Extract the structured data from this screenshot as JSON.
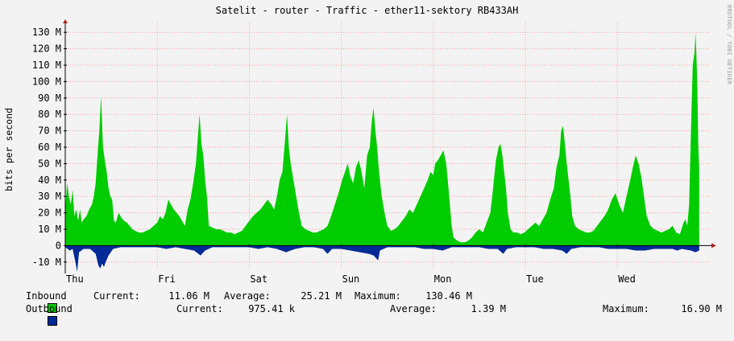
{
  "title": "Satelit - router - Traffic - ether11-sektory RB433AH",
  "side_text": "RRDTOOL / TOBI OETIKER",
  "chart_data": {
    "type": "area",
    "ylabel": "bits per second",
    "ylim": [
      -15,
      135
    ],
    "y_ticks": [
      "130 M",
      "120 M",
      "110 M",
      "100 M",
      "90 M",
      "80 M",
      "70 M",
      "60 M",
      "50 M",
      "40 M",
      "30 M",
      "20 M",
      "10 M",
      "0",
      "-10 M"
    ],
    "y_tick_values": [
      130,
      120,
      110,
      100,
      90,
      80,
      70,
      60,
      50,
      40,
      30,
      20,
      10,
      0,
      -10
    ],
    "x_ticks": [
      "Thu",
      "Fri",
      "Sat",
      "Sun",
      "Mon",
      "Tue",
      "Wed"
    ],
    "x_tick_days": [
      0,
      1,
      2,
      3,
      4,
      5,
      6
    ],
    "x_range_days": [
      0,
      7.0
    ],
    "colors": {
      "inbound": "#00cc00",
      "outbound": "#002a97",
      "grid": "#ff9999",
      "axis": "#000000"
    },
    "series": [
      {
        "name": "Inbound",
        "unit": "M bits/s",
        "points": [
          [
            0.0,
            22
          ],
          [
            0.02,
            38
          ],
          [
            0.04,
            30
          ],
          [
            0.06,
            25
          ],
          [
            0.08,
            34
          ],
          [
            0.1,
            18
          ],
          [
            0.12,
            22
          ],
          [
            0.14,
            15
          ],
          [
            0.16,
            22
          ],
          [
            0.18,
            14
          ],
          [
            0.2,
            16
          ],
          [
            0.23,
            18
          ],
          [
            0.26,
            22
          ],
          [
            0.29,
            25
          ],
          [
            0.31,
            30
          ],
          [
            0.33,
            38
          ],
          [
            0.35,
            55
          ],
          [
            0.37,
            70
          ],
          [
            0.39,
            91
          ],
          [
            0.41,
            60
          ],
          [
            0.43,
            52
          ],
          [
            0.45,
            45
          ],
          [
            0.47,
            35
          ],
          [
            0.49,
            30
          ],
          [
            0.51,
            28
          ],
          [
            0.53,
            15
          ],
          [
            0.55,
            14
          ],
          [
            0.58,
            20
          ],
          [
            0.61,
            17
          ],
          [
            0.64,
            15
          ],
          [
            0.67,
            14
          ],
          [
            0.7,
            12
          ],
          [
            0.73,
            10
          ],
          [
            0.76,
            9
          ],
          [
            0.8,
            8
          ],
          [
            0.84,
            8
          ],
          [
            0.88,
            9
          ],
          [
            0.92,
            10
          ],
          [
            0.96,
            12
          ],
          [
            1.0,
            14
          ],
          [
            1.03,
            18
          ],
          [
            1.06,
            16
          ],
          [
            1.09,
            20
          ],
          [
            1.12,
            28
          ],
          [
            1.15,
            25
          ],
          [
            1.18,
            22
          ],
          [
            1.21,
            20
          ],
          [
            1.24,
            18
          ],
          [
            1.27,
            15
          ],
          [
            1.3,
            12
          ],
          [
            1.33,
            22
          ],
          [
            1.36,
            28
          ],
          [
            1.39,
            38
          ],
          [
            1.42,
            50
          ],
          [
            1.44,
            65
          ],
          [
            1.46,
            80
          ],
          [
            1.48,
            62
          ],
          [
            1.5,
            55
          ],
          [
            1.52,
            40
          ],
          [
            1.54,
            30
          ],
          [
            1.56,
            12
          ],
          [
            1.6,
            11
          ],
          [
            1.64,
            10
          ],
          [
            1.68,
            10
          ],
          [
            1.72,
            9
          ],
          [
            1.76,
            8
          ],
          [
            1.8,
            8
          ],
          [
            1.84,
            7
          ],
          [
            1.88,
            8
          ],
          [
            1.92,
            9
          ],
          [
            1.96,
            12
          ],
          [
            2.0,
            15
          ],
          [
            2.04,
            18
          ],
          [
            2.08,
            20
          ],
          [
            2.12,
            22
          ],
          [
            2.16,
            25
          ],
          [
            2.2,
            28
          ],
          [
            2.24,
            25
          ],
          [
            2.27,
            22
          ],
          [
            2.3,
            30
          ],
          [
            2.33,
            40
          ],
          [
            2.36,
            45
          ],
          [
            2.39,
            65
          ],
          [
            2.41,
            80
          ],
          [
            2.43,
            60
          ],
          [
            2.45,
            50
          ],
          [
            2.48,
            40
          ],
          [
            2.51,
            30
          ],
          [
            2.54,
            20
          ],
          [
            2.57,
            12
          ],
          [
            2.61,
            10
          ],
          [
            2.65,
            9
          ],
          [
            2.69,
            8
          ],
          [
            2.73,
            8
          ],
          [
            2.77,
            9
          ],
          [
            2.81,
            10
          ],
          [
            2.85,
            12
          ],
          [
            2.89,
            18
          ],
          [
            2.93,
            25
          ],
          [
            2.97,
            32
          ],
          [
            3.01,
            40
          ],
          [
            3.04,
            45
          ],
          [
            3.07,
            50
          ],
          [
            3.1,
            42
          ],
          [
            3.13,
            38
          ],
          [
            3.16,
            48
          ],
          [
            3.19,
            52
          ],
          [
            3.22,
            45
          ],
          [
            3.25,
            35
          ],
          [
            3.28,
            55
          ],
          [
            3.31,
            60
          ],
          [
            3.33,
            75
          ],
          [
            3.35,
            84
          ],
          [
            3.37,
            70
          ],
          [
            3.39,
            60
          ],
          [
            3.41,
            45
          ],
          [
            3.44,
            30
          ],
          [
            3.47,
            20
          ],
          [
            3.5,
            12
          ],
          [
            3.54,
            9
          ],
          [
            3.58,
            10
          ],
          [
            3.62,
            12
          ],
          [
            3.66,
            15
          ],
          [
            3.7,
            18
          ],
          [
            3.74,
            22
          ],
          [
            3.78,
            20
          ],
          [
            3.82,
            25
          ],
          [
            3.86,
            30
          ],
          [
            3.9,
            35
          ],
          [
            3.94,
            40
          ],
          [
            3.97,
            45
          ],
          [
            4.0,
            43
          ],
          [
            4.02,
            50
          ],
          [
            4.05,
            52
          ],
          [
            4.08,
            55
          ],
          [
            4.11,
            58
          ],
          [
            4.14,
            50
          ],
          [
            4.16,
            38
          ],
          [
            4.18,
            25
          ],
          [
            4.2,
            12
          ],
          [
            4.22,
            5
          ],
          [
            4.26,
            3
          ],
          [
            4.3,
            2
          ],
          [
            4.34,
            2
          ],
          [
            4.38,
            3
          ],
          [
            4.42,
            5
          ],
          [
            4.46,
            8
          ],
          [
            4.5,
            10
          ],
          [
            4.54,
            8
          ],
          [
            4.58,
            14
          ],
          [
            4.62,
            20
          ],
          [
            4.65,
            35
          ],
          [
            4.68,
            52
          ],
          [
            4.71,
            60
          ],
          [
            4.73,
            62
          ],
          [
            4.75,
            55
          ],
          [
            4.77,
            45
          ],
          [
            4.79,
            35
          ],
          [
            4.81,
            20
          ],
          [
            4.84,
            10
          ],
          [
            4.87,
            8
          ],
          [
            4.91,
            8
          ],
          [
            4.95,
            7
          ],
          [
            4.99,
            8
          ],
          [
            5.03,
            10
          ],
          [
            5.07,
            12
          ],
          [
            5.11,
            14
          ],
          [
            5.15,
            12
          ],
          [
            5.19,
            16
          ],
          [
            5.23,
            20
          ],
          [
            5.27,
            28
          ],
          [
            5.31,
            35
          ],
          [
            5.34,
            48
          ],
          [
            5.37,
            55
          ],
          [
            5.39,
            70
          ],
          [
            5.41,
            73
          ],
          [
            5.43,
            62
          ],
          [
            5.45,
            50
          ],
          [
            5.47,
            40
          ],
          [
            5.49,
            30
          ],
          [
            5.51,
            18
          ],
          [
            5.54,
            12
          ],
          [
            5.58,
            10
          ],
          [
            5.62,
            9
          ],
          [
            5.66,
            8
          ],
          [
            5.7,
            8
          ],
          [
            5.74,
            9
          ],
          [
            5.78,
            12
          ],
          [
            5.82,
            15
          ],
          [
            5.86,
            18
          ],
          [
            5.9,
            22
          ],
          [
            5.94,
            28
          ],
          [
            5.98,
            32
          ],
          [
            6.02,
            25
          ],
          [
            6.06,
            20
          ],
          [
            6.1,
            30
          ],
          [
            6.14,
            40
          ],
          [
            6.17,
            48
          ],
          [
            6.2,
            55
          ],
          [
            6.23,
            50
          ],
          [
            6.26,
            42
          ],
          [
            6.29,
            30
          ],
          [
            6.32,
            18
          ],
          [
            6.36,
            12
          ],
          [
            6.4,
            10
          ],
          [
            6.44,
            9
          ],
          [
            6.48,
            8
          ],
          [
            6.52,
            9
          ],
          [
            6.56,
            10
          ],
          [
            6.6,
            12
          ],
          [
            6.64,
            8
          ],
          [
            6.68,
            7
          ],
          [
            6.72,
            14
          ],
          [
            6.74,
            16
          ],
          [
            6.76,
            12
          ],
          [
            6.78,
            25
          ],
          [
            6.8,
            70
          ],
          [
            6.82,
            110
          ],
          [
            6.84,
            118
          ],
          [
            6.85,
            130
          ],
          [
            6.86,
            115
          ],
          [
            6.87,
            95
          ],
          [
            6.88,
            60
          ],
          [
            6.89,
            47
          ]
        ]
      },
      {
        "name": "Outbound",
        "unit": "M bits/s",
        "points": [
          [
            0.0,
            -1
          ],
          [
            0.05,
            -3
          ],
          [
            0.08,
            -2
          ],
          [
            0.11,
            -10
          ],
          [
            0.13,
            -16
          ],
          [
            0.15,
            -4
          ],
          [
            0.2,
            -2
          ],
          [
            0.27,
            -2
          ],
          [
            0.33,
            -5
          ],
          [
            0.36,
            -12
          ],
          [
            0.38,
            -14
          ],
          [
            0.4,
            -11
          ],
          [
            0.42,
            -13
          ],
          [
            0.44,
            -10
          ],
          [
            0.47,
            -6
          ],
          [
            0.52,
            -2
          ],
          [
            0.6,
            -1
          ],
          [
            0.75,
            -1
          ],
          [
            0.9,
            -1
          ],
          [
            1.0,
            -1
          ],
          [
            1.1,
            -2
          ],
          [
            1.2,
            -1
          ],
          [
            1.3,
            -2
          ],
          [
            1.4,
            -3
          ],
          [
            1.47,
            -6
          ],
          [
            1.52,
            -3
          ],
          [
            1.6,
            -1
          ],
          [
            1.8,
            -1
          ],
          [
            2.0,
            -1
          ],
          [
            2.1,
            -2
          ],
          [
            2.2,
            -1
          ],
          [
            2.3,
            -2
          ],
          [
            2.4,
            -4
          ],
          [
            2.45,
            -3
          ],
          [
            2.5,
            -2
          ],
          [
            2.6,
            -1
          ],
          [
            2.7,
            -1
          ],
          [
            2.8,
            -2
          ],
          [
            2.85,
            -5
          ],
          [
            2.9,
            -2
          ],
          [
            3.0,
            -2
          ],
          [
            3.1,
            -3
          ],
          [
            3.2,
            -4
          ],
          [
            3.3,
            -5
          ],
          [
            3.35,
            -6
          ],
          [
            3.4,
            -9
          ],
          [
            3.42,
            -3
          ],
          [
            3.5,
            -1
          ],
          [
            3.6,
            -1
          ],
          [
            3.7,
            -1
          ],
          [
            3.8,
            -1
          ],
          [
            3.9,
            -2
          ],
          [
            4.0,
            -2
          ],
          [
            4.1,
            -3
          ],
          [
            4.2,
            -1
          ],
          [
            4.3,
            -1
          ],
          [
            4.4,
            -1
          ],
          [
            4.5,
            -1
          ],
          [
            4.6,
            -2
          ],
          [
            4.7,
            -2
          ],
          [
            4.76,
            -5
          ],
          [
            4.8,
            -2
          ],
          [
            4.9,
            -1
          ],
          [
            5.0,
            -1
          ],
          [
            5.1,
            -1
          ],
          [
            5.2,
            -2
          ],
          [
            5.3,
            -2
          ],
          [
            5.4,
            -3
          ],
          [
            5.45,
            -5
          ],
          [
            5.5,
            -2
          ],
          [
            5.6,
            -1
          ],
          [
            5.7,
            -1
          ],
          [
            5.8,
            -1
          ],
          [
            5.9,
            -2
          ],
          [
            6.0,
            -2
          ],
          [
            6.1,
            -2
          ],
          [
            6.2,
            -3
          ],
          [
            6.3,
            -3
          ],
          [
            6.4,
            -2
          ],
          [
            6.5,
            -2
          ],
          [
            6.6,
            -2
          ],
          [
            6.65,
            -3
          ],
          [
            6.7,
            -2
          ],
          [
            6.8,
            -3
          ],
          [
            6.85,
            -4
          ],
          [
            6.89,
            -3
          ]
        ]
      }
    ]
  },
  "legend": {
    "inbound": {
      "name": "Inbound",
      "current_label": "Current:",
      "current": "11.06 M",
      "average_label": "Average:",
      "average": "25.21 M",
      "maximum_label": "Maximum:",
      "maximum": "130.46 M"
    },
    "outbound": {
      "name": "Outbound",
      "current_label": "Current:",
      "current": "975.41 k",
      "average_label": "Average:",
      "average": "1.39 M",
      "maximum_label": "Maximum:",
      "maximum": "16.90 M"
    }
  }
}
